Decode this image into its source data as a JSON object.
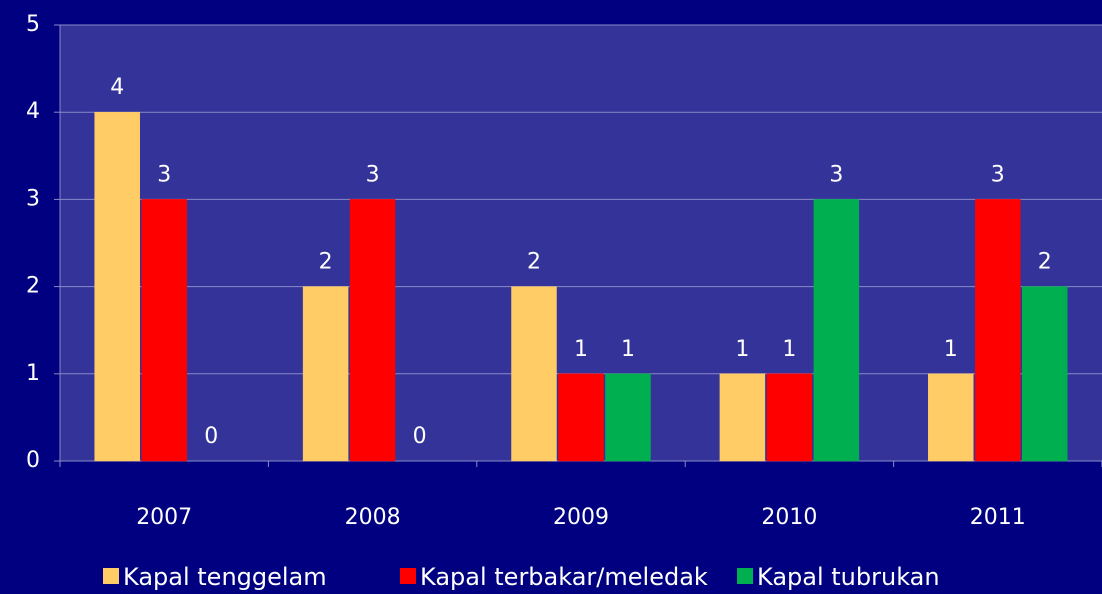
{
  "chart_data": {
    "type": "bar",
    "categories": [
      "2007",
      "2008",
      "2009",
      "2010",
      "2011"
    ],
    "series": [
      {
        "name": "Kapal tenggelam",
        "color": "#ffcc66",
        "values": [
          4,
          2,
          2,
          1,
          1
        ]
      },
      {
        "name": "Kapal terbakar/meledak",
        "color": "#ff0000",
        "values": [
          3,
          3,
          1,
          1,
          3
        ]
      },
      {
        "name": "Kapal tubrukan",
        "color": "#00b050",
        "values": [
          0,
          0,
          1,
          3,
          2
        ]
      }
    ],
    "ylim": [
      0,
      5
    ],
    "yticks": [
      0,
      1,
      2,
      3,
      4,
      5
    ],
    "grid": true,
    "data_labels": true,
    "legend": "bottom"
  }
}
